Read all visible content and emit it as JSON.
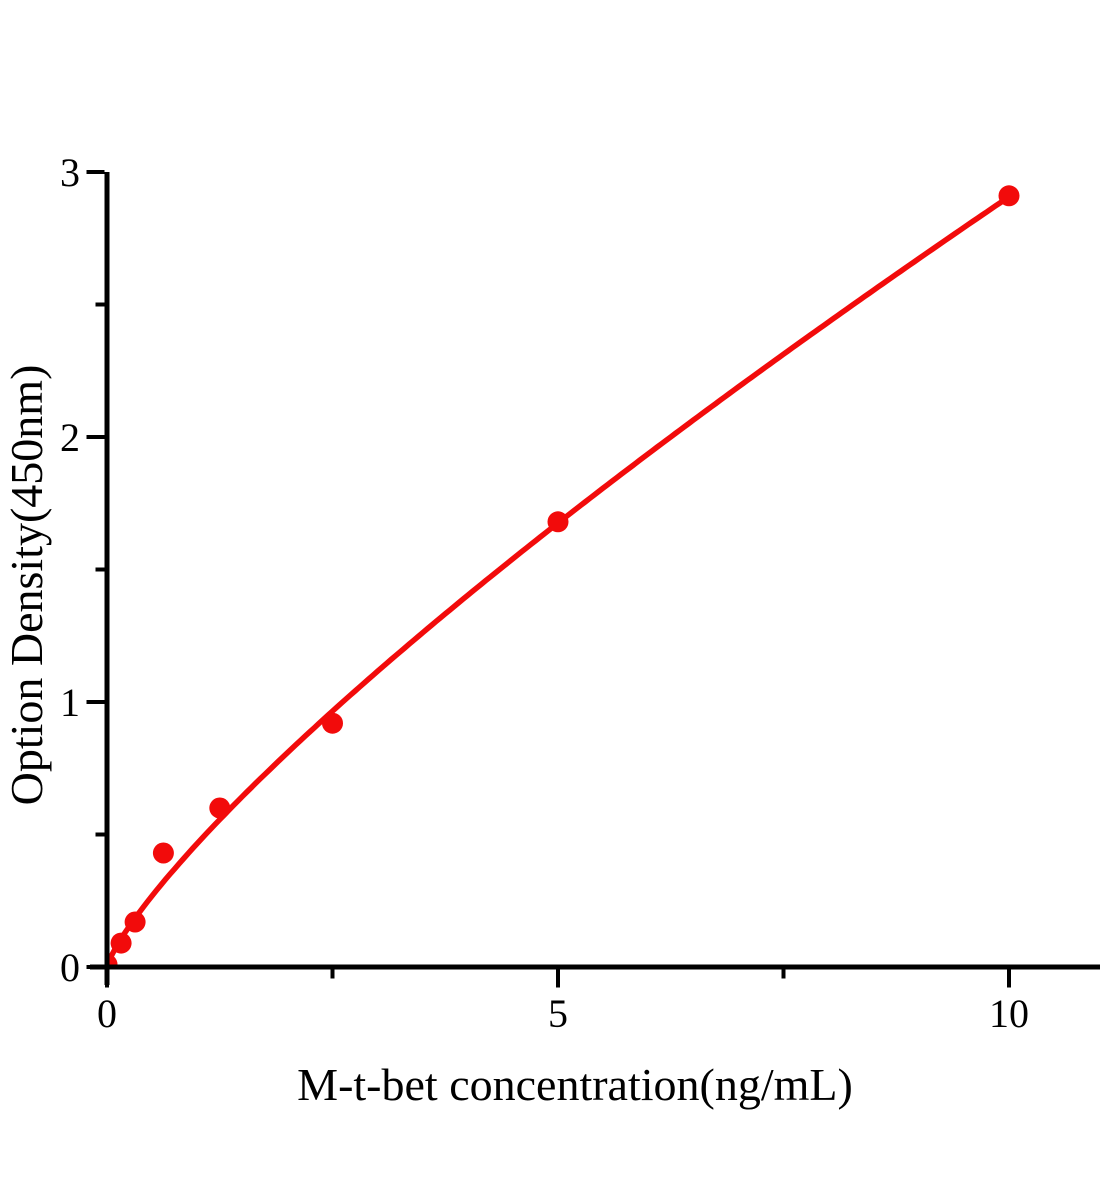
{
  "chart_data": {
    "type": "scatter",
    "title": "",
    "xlabel": "M-t-bet concentration(ng/mL)",
    "ylabel": "Option Density(450nm)",
    "xlim": [
      0,
      11
    ],
    "ylim": [
      0,
      3
    ],
    "grid": false,
    "legend": "none",
    "x_major_ticks": [
      0,
      5,
      10
    ],
    "x_major_tick_labels": [
      "0",
      "5",
      "10"
    ],
    "x_minor_ticks": [
      2.5,
      7.5
    ],
    "y_major_ticks": [
      0,
      1,
      2,
      3
    ],
    "y_major_tick_labels": [
      "0",
      "1",
      "2",
      "3"
    ],
    "y_minor_ticks": [
      0.5,
      1.5,
      2.5
    ],
    "points": [
      {
        "x": 0,
        "y": 0.01
      },
      {
        "x": 0.156,
        "y": 0.09
      },
      {
        "x": 0.312,
        "y": 0.17
      },
      {
        "x": 0.625,
        "y": 0.43
      },
      {
        "x": 1.25,
        "y": 0.6
      },
      {
        "x": 2.5,
        "y": 0.92
      },
      {
        "x": 5,
        "y": 1.68
      },
      {
        "x": 10,
        "y": 2.91
      }
    ],
    "fit_curve": {
      "type": "power",
      "a": 0.466,
      "b": 0.795,
      "x_start": 0,
      "x_end": 10
    },
    "colors": {
      "series": "#f20b0b",
      "axis": "#000000",
      "background": "#ffffff"
    }
  }
}
